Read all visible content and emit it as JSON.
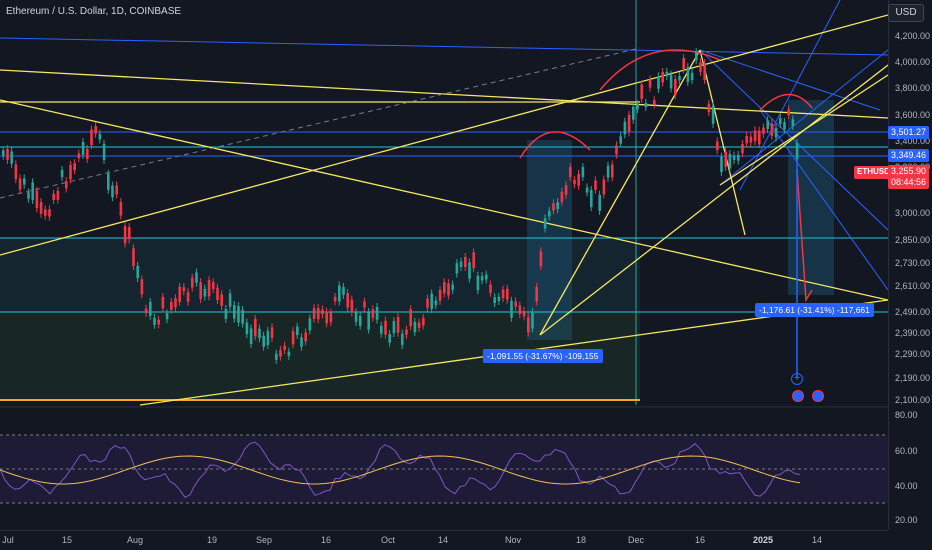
{
  "header": {
    "title": "Ethereum / U.S. Dollar, 1D, COINBASE",
    "currency_button": "USD"
  },
  "price_axis": {
    "ticks": [
      "4,200.00",
      "4,000.00",
      "3,800.00",
      "3,600.00",
      "3,400.00",
      "3,200.00",
      "3,000.00",
      "2,850.00",
      "2,730.00",
      "2,610.00",
      "2,490.00",
      "2,390.00",
      "2,290.00",
      "2,190.00",
      "2,100.00"
    ]
  },
  "price_tags": [
    {
      "label": "3,501.27",
      "color": "#2962ff"
    },
    {
      "label": "3,349.46",
      "color": "#2962ff"
    }
  ],
  "last_price": {
    "symbol": "ETHUSD",
    "price": "3,255.90",
    "countdown": "08:44:56",
    "color": "#f23645"
  },
  "measurements": [
    {
      "label": "-1,091.55 (-31.67%) -109,155"
    },
    {
      "label": "-1,176.61 (-31.41%) -117,661"
    }
  ],
  "rsi_axis": {
    "ticks": [
      "80.00",
      "60.00",
      "40.00",
      "20.00"
    ]
  },
  "time_axis": {
    "ticks": [
      {
        "label": "Jul",
        "bold": false
      },
      {
        "label": "15",
        "bold": false
      },
      {
        "label": "Aug",
        "bold": false
      },
      {
        "label": "19",
        "bold": false
      },
      {
        "label": "Sep",
        "bold": false
      },
      {
        "label": "16",
        "bold": false
      },
      {
        "label": "Oct",
        "bold": false
      },
      {
        "label": "14",
        "bold": false
      },
      {
        "label": "Nov",
        "bold": false
      },
      {
        "label": "18",
        "bold": false
      },
      {
        "label": "Dec",
        "bold": false
      },
      {
        "label": "16",
        "bold": false
      },
      {
        "label": "2025",
        "bold": true
      },
      {
        "label": "14",
        "bold": false
      }
    ]
  },
  "icons": {
    "event_icons": [
      "earnings-event-icon",
      "earnings-event-icon"
    ],
    "add_icon": "plus-icon"
  },
  "colors": {
    "background": "#131722",
    "up": "#26a69a",
    "down": "#f23645",
    "trendline_yellow": "#f5e663",
    "trendline_blue": "#2962ff",
    "rsi_line": "#7e57c2",
    "rsi_ma": "#f0c05a"
  }
}
